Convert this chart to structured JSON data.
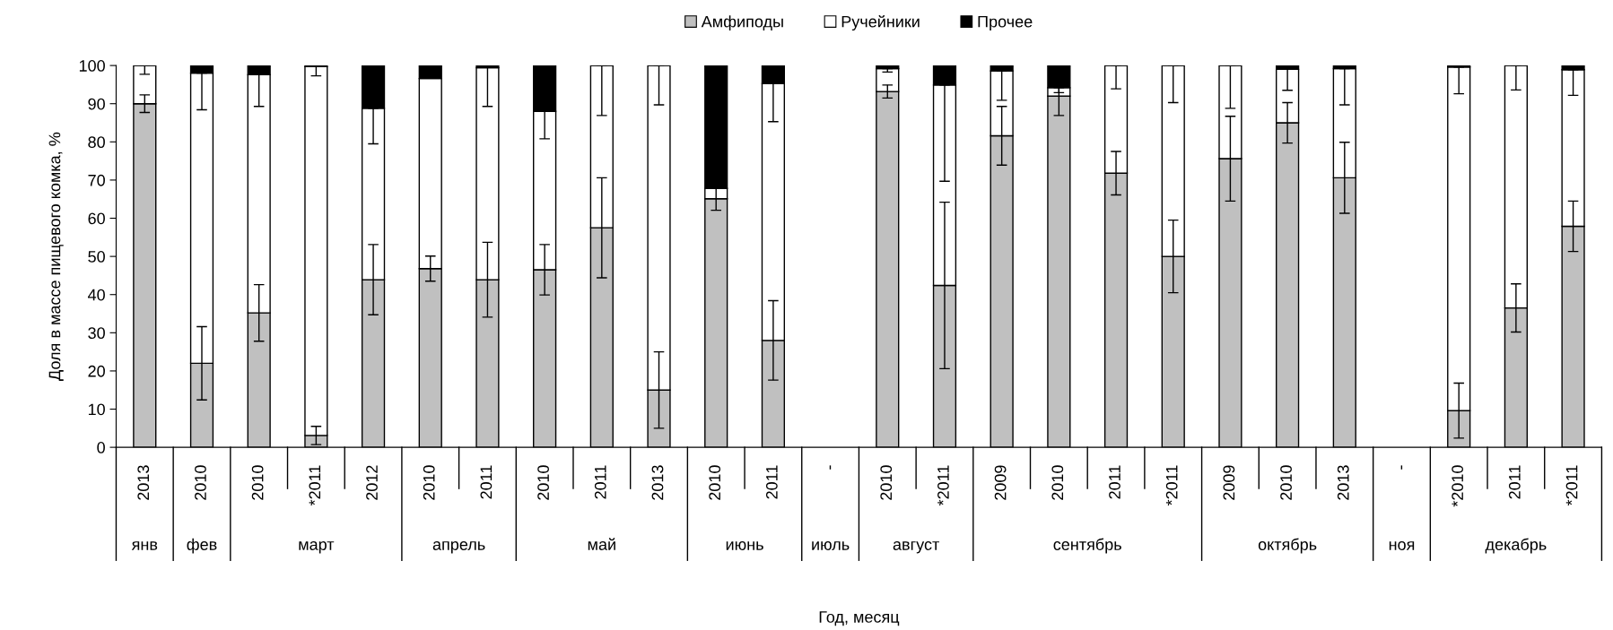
{
  "chart_data": {
    "type": "bar",
    "stacked": true,
    "ylabel": "Доля в массе пищевого комка, %",
    "categories": [
      "2013",
      "2010",
      "2010",
      "*2011",
      "2012",
      "2010",
      "2011",
      "2010",
      "2011",
      "2013",
      "2010",
      "2011",
      "-",
      "2010",
      "*2011",
      "2009",
      "2010",
      "2011",
      "*2011",
      "2009",
      "2010",
      "2013",
      "-",
      "*2010",
      "2011",
      "*2011"
    ],
    "series": [
      {
        "name": "Амфиподы",
        "color": "#c0c0c0",
        "values": [
          90,
          22,
          35.2,
          3.1,
          43.9,
          46.8,
          43.9,
          46.5,
          57.5,
          15,
          65.1,
          28,
          null,
          93.2,
          42.4,
          81.6,
          92,
          71.8,
          50,
          75.6,
          85,
          70.6,
          null,
          9.6,
          36.5,
          57.9
        ],
        "errors": [
          2.3,
          9.6,
          7.4,
          2.4,
          9.2,
          3.3,
          9.8,
          6.6,
          13.1,
          10,
          3,
          10.4,
          null,
          1.7,
          21.8,
          7.7,
          5.1,
          5.7,
          9.5,
          11.1,
          5.3,
          9.3,
          null,
          7.2,
          6.3,
          6.6
        ]
      },
      {
        "name": "Ручейники",
        "color": "#ffffff",
        "values": [
          10,
          76,
          62.4,
          96.6,
          44.9,
          49.8,
          55.5,
          41.5,
          42.5,
          85,
          2.7,
          67.3,
          null,
          6,
          52.5,
          17,
          2.2,
          28.2,
          50,
          24.4,
          14,
          28.6,
          null,
          90,
          63.5,
          41
        ],
        "errors": [
          [
            97.7,
            100
          ],
          [
            88.4,
            98
          ],
          [
            89.3,
            97.6
          ],
          [
            97.3,
            100
          ],
          [
            79.5,
            88.8
          ],
          null,
          [
            89.3,
            100
          ],
          [
            80.8,
            88
          ],
          [
            86.9,
            100
          ],
          [
            89.7,
            100
          ],
          null,
          [
            85.3,
            95.3
          ],
          null,
          [
            98.3,
            99.2
          ],
          [
            69.7,
            94.9
          ],
          [
            90.9,
            98.6
          ],
          [
            92.9,
            94.2
          ],
          [
            93.9,
            100
          ],
          [
            90.3,
            100
          ],
          [
            88.8,
            100
          ],
          [
            93.5,
            99
          ],
          [
            89.7,
            99.2
          ],
          null,
          [
            92.6,
            99.6
          ],
          [
            93.6,
            100
          ],
          [
            92.2,
            98.9
          ]
        ]
      },
      {
        "name": "Прочее",
        "color": "#000000",
        "values": [
          0,
          2,
          2.4,
          0.3,
          11.2,
          3.4,
          0.6,
          12,
          0,
          0,
          32.2,
          4.7,
          null,
          0.8,
          5.1,
          1.4,
          5.8,
          0,
          0,
          0,
          1,
          0.8,
          null,
          0.4,
          0,
          1.1
        ]
      }
    ],
    "ylim": [
      0,
      100
    ],
    "yticks": [
      0,
      10,
      20,
      30,
      40,
      50,
      60,
      70,
      80,
      90,
      100
    ],
    "grid": false,
    "legend": "top",
    "annotations": [
      "янв",
      "фев",
      "март",
      "апрель",
      "май",
      "июнь",
      "июль",
      "август",
      "сентябрь",
      "октябрь",
      "ноя",
      "декабрь",
      "Год, месяц"
    ]
  }
}
